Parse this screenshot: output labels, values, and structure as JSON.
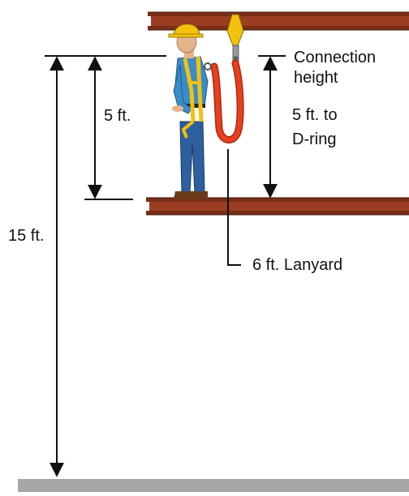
{
  "labels": {
    "connection_height_line1": "Connection",
    "connection_height_line2": "height",
    "five_ft": "5 ft.",
    "five_ft_to_line1": "5 ft. to",
    "five_ft_to_line2": "D-ring",
    "fifteen_ft": "15 ft.",
    "lanyard": "6 ft. Lanyard"
  },
  "colors": {
    "beam": "#9a3d22",
    "beam_edge": "#5a1d0c",
    "ground": "#a6a6a6",
    "hard_hat": "#f4c20d",
    "shirt": "#3a8cc8",
    "jeans": "#2e5f9e",
    "harness": "#f2c20f",
    "lanyard": "#e8401c",
    "dimension_line": "#111111"
  }
}
